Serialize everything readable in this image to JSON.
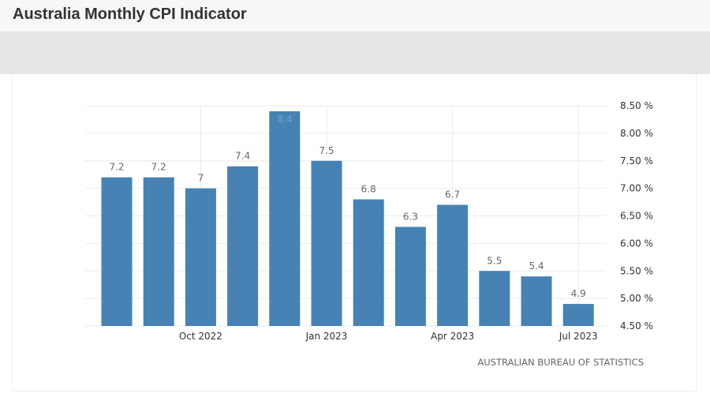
{
  "page": {
    "title": "Australia Monthly CPI Indicator"
  },
  "colors": {
    "bar": "#4682b4",
    "grid": "#ebebeb",
    "tick_text": "#333333",
    "data_label_text": "#666666",
    "source_text": "#666666"
  },
  "chart_data": {
    "type": "bar",
    "title": "",
    "xlabel": "",
    "ylabel": "",
    "categories": [
      "Aug 2022",
      "Sep 2022",
      "Oct 2022",
      "Nov 2022",
      "Dec 2022",
      "Jan 2023",
      "Feb 2023",
      "Mar 2023",
      "Apr 2023",
      "May 2023",
      "Jun 2023",
      "Jul 2023"
    ],
    "values": [
      7.2,
      7.2,
      7,
      7.4,
      8.4,
      7.5,
      6.8,
      6.3,
      6.7,
      5.5,
      5.4,
      4.9
    ],
    "value_labels": [
      "7.2",
      "7.2",
      "7",
      "7.4",
      "8.4",
      "7.5",
      "6.8",
      "6.3",
      "6.7",
      "5.5",
      "5.4",
      "4.9"
    ],
    "x_tick_labels": [
      {
        "category": "Oct 2022",
        "label": "Oct 2022"
      },
      {
        "category": "Jan 2023",
        "label": "Jan 2023"
      },
      {
        "category": "Apr 2023",
        "label": "Apr 2023"
      },
      {
        "category": "Jul 2023",
        "label": "Jul 2023"
      }
    ],
    "y_ticks": [
      4.5,
      5,
      5.5,
      6,
      6.5,
      7,
      7.5,
      8,
      8.5
    ],
    "y_tick_labels": [
      "4.50 %",
      "5.00 %",
      "5.50 %",
      "6.00 %",
      "6.50 %",
      "7.00 %",
      "7.50 %",
      "8.00 %",
      "8.50 %"
    ],
    "ylim": [
      4.5,
      8.5
    ],
    "y_axis_position": "right",
    "grid": true,
    "source": "AUSTRALIAN BUREAU OF STATISTICS"
  }
}
